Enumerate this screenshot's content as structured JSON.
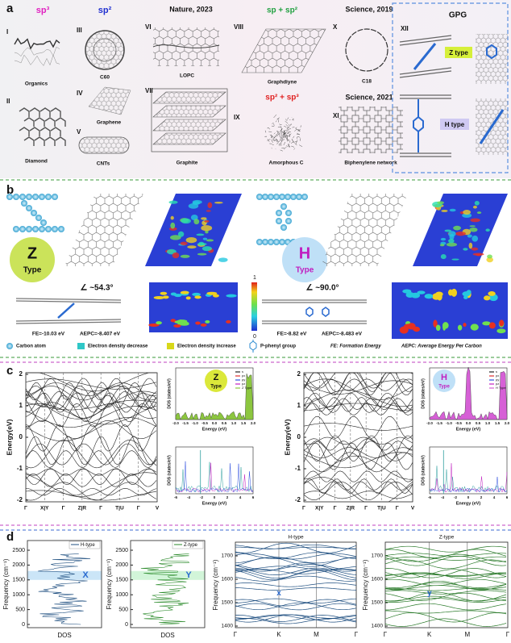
{
  "panel_a": {
    "label": "a",
    "sp3": {
      "title": "sp³",
      "items": [
        {
          "numeral": "I",
          "name": "Organics"
        },
        {
          "numeral": "II",
          "name": "Diamond"
        }
      ]
    },
    "sp2": {
      "title": "sp²",
      "items": [
        {
          "numeral": "III",
          "name": "C60"
        },
        {
          "numeral": "IV",
          "name": "Graphene"
        },
        {
          "numeral": "V",
          "name": "CNTs"
        }
      ]
    },
    "nature": {
      "title": "Nature, 2023",
      "items": [
        {
          "numeral": "VI",
          "name": "LOPC"
        },
        {
          "numeral": "VII",
          "name": "Graphite"
        }
      ]
    },
    "sp_sp2": {
      "title": "sp + sp²",
      "items": [
        {
          "numeral": "VIII",
          "name": "Graphdiyne"
        }
      ]
    },
    "sp2_sp3": {
      "title": "sp² + sp³",
      "items": [
        {
          "numeral": "IX",
          "name": "Amorphous C"
        }
      ]
    },
    "science2019": {
      "title": "Science, 2019",
      "items": [
        {
          "numeral": "X",
          "name": "C18"
        }
      ]
    },
    "science2021": {
      "title": "Science, 2021",
      "items": [
        {
          "numeral": "XI",
          "name": "Biphenylene network"
        }
      ]
    },
    "gpg": {
      "title": "GPG",
      "numeral": "XII",
      "z_type": "Z type",
      "h_type": "H type"
    }
  },
  "panel_b": {
    "label": "b",
    "z": {
      "letter": "Z",
      "word": "Type",
      "angle": "∠ ~54.3°",
      "fe": "FE=-10.03 eV",
      "aepc": "AEPC=-8.407 eV"
    },
    "h": {
      "letter": "H",
      "word": "Type",
      "angle": "∠ ~90.0°",
      "fe": "FE=-8.82 eV",
      "aepc": "AEPC=-8.483 eV"
    },
    "colorbar": {
      "max": "1",
      "min": "0"
    },
    "legend": [
      "Carbon atom",
      "Electron density decrease",
      "Electron density increase",
      "P-phenyl group",
      "FE: Formation Energy",
      "AEPC: Average Energy Per Carbon"
    ]
  },
  "panel_c": {
    "label": "c",
    "plots": [
      {
        "y_label": "Energy(eV)",
        "y_ticks": [
          "2",
          "1",
          "0",
          "-1",
          "-2"
        ],
        "x_ticks": [
          "Γ",
          "X|Y",
          "Γ",
          "Z|R",
          "Γ",
          "T|U",
          "Γ",
          "V"
        ],
        "inset_top": {
          "letter": "Z",
          "word": "Type",
          "y_label": "DOS (states/eV)",
          "x_label": "Energy (eV)",
          "x_ticks": [
            "-2.0",
            "-1.5",
            "-1.0",
            "-0.5",
            "0.0",
            "0.5",
            "1.0",
            "1.5",
            "2.0"
          ],
          "legend": [
            "s",
            "px",
            "py",
            "pz",
            "Z Type"
          ]
        },
        "inset_bottom": {
          "y_label": "DOS (states/eV)",
          "x_label": "Energy (eV)",
          "x_ticks": [
            "-6",
            "-4",
            "-2",
            "0",
            "2",
            "4",
            "6"
          ]
        }
      },
      {
        "y_label": "Energy(eV)",
        "y_ticks": [
          "2",
          "1",
          "0",
          "-1",
          "-2"
        ],
        "x_ticks": [
          "Γ",
          "X|Y",
          "Γ",
          "Z|R",
          "Γ",
          "T|U",
          "Γ",
          "V"
        ],
        "inset_top": {
          "letter": "H",
          "word": "Type",
          "y_label": "DOS (states/eV)",
          "x_label": "Energy (eV)",
          "x_ticks": [
            "-2.0",
            "-1.5",
            "-1.0",
            "-0.5",
            "0.0",
            "0.5",
            "1.0",
            "1.5",
            "2.0"
          ],
          "legend": [
            "s",
            "px",
            "py",
            "pz",
            "H Type"
          ]
        },
        "inset_bottom": {
          "y_label": "DOS (states/eV)",
          "x_label": "Energy (eV)",
          "x_ticks": [
            "-6",
            "-4",
            "-2",
            "0",
            "2",
            "4",
            "6"
          ]
        }
      }
    ]
  },
  "panel_d": {
    "label": "d",
    "dos": [
      {
        "legend": "H-type",
        "band_label": "X",
        "x_label": "DOS",
        "y_label": "Frequency (cm⁻¹)",
        "y_ticks": [
          "0",
          "500",
          "1000",
          "1500",
          "2000",
          "2500"
        ]
      },
      {
        "legend": "Z-type",
        "band_label": "Y",
        "x_label": "DOS",
        "y_label": "Frequency (cm⁻¹)",
        "y_ticks": [
          "0",
          "500",
          "1000",
          "1500",
          "2000",
          "2500"
        ]
      }
    ],
    "bands": [
      {
        "title": "H-type",
        "band_label": "x",
        "y_label": "Frequency (cm⁻¹)",
        "y_ticks": [
          "1400",
          "1500",
          "1600",
          "1700"
        ],
        "x_ticks": [
          "Γ",
          "K",
          "M",
          "Γ"
        ]
      },
      {
        "title": "Z-type",
        "band_label": "y",
        "y_label": "Frequency (cm⁻¹)",
        "y_ticks": [
          "1400",
          "1500",
          "1600",
          "1700"
        ],
        "x_ticks": [
          "Γ",
          "K",
          "M",
          "Γ"
        ]
      }
    ]
  }
}
